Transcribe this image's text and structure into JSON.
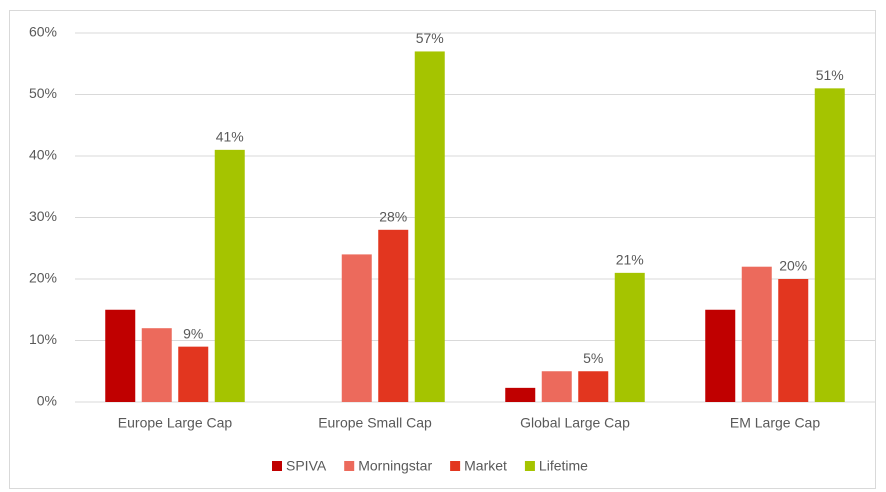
{
  "chart_data": {
    "type": "bar",
    "categories": [
      "Europe Large Cap",
      "Europe Small Cap",
      "Global Large Cap",
      "EM Large Cap"
    ],
    "series": [
      {
        "name": "SPIVA",
        "color": "#c00000",
        "values": [
          15,
          null,
          2.3,
          15
        ]
      },
      {
        "name": "Morningstar",
        "color": "#ec6a5c",
        "values": [
          12,
          24,
          5,
          22
        ]
      },
      {
        "name": "Market",
        "color": "#e2361f",
        "values": [
          9,
          28,
          5,
          20
        ],
        "value_labels": [
          "9%",
          "28%",
          "5%",
          "20%"
        ]
      },
      {
        "name": "Lifetime",
        "color": "#a5c400",
        "values": [
          41,
          57,
          21,
          51
        ],
        "value_labels": [
          "41%",
          "57%",
          "21%",
          "51%"
        ]
      }
    ],
    "ylim": [
      0,
      60
    ],
    "yticks": [
      {
        "value": 0,
        "label": "0%"
      },
      {
        "value": 10,
        "label": "10%"
      },
      {
        "value": 20,
        "label": "20%"
      },
      {
        "value": 30,
        "label": "30%"
      },
      {
        "value": 40,
        "label": "40%"
      },
      {
        "value": 50,
        "label": "50%"
      },
      {
        "value": 60,
        "label": "60%"
      }
    ],
    "grid": true,
    "legend": "bottom"
  }
}
